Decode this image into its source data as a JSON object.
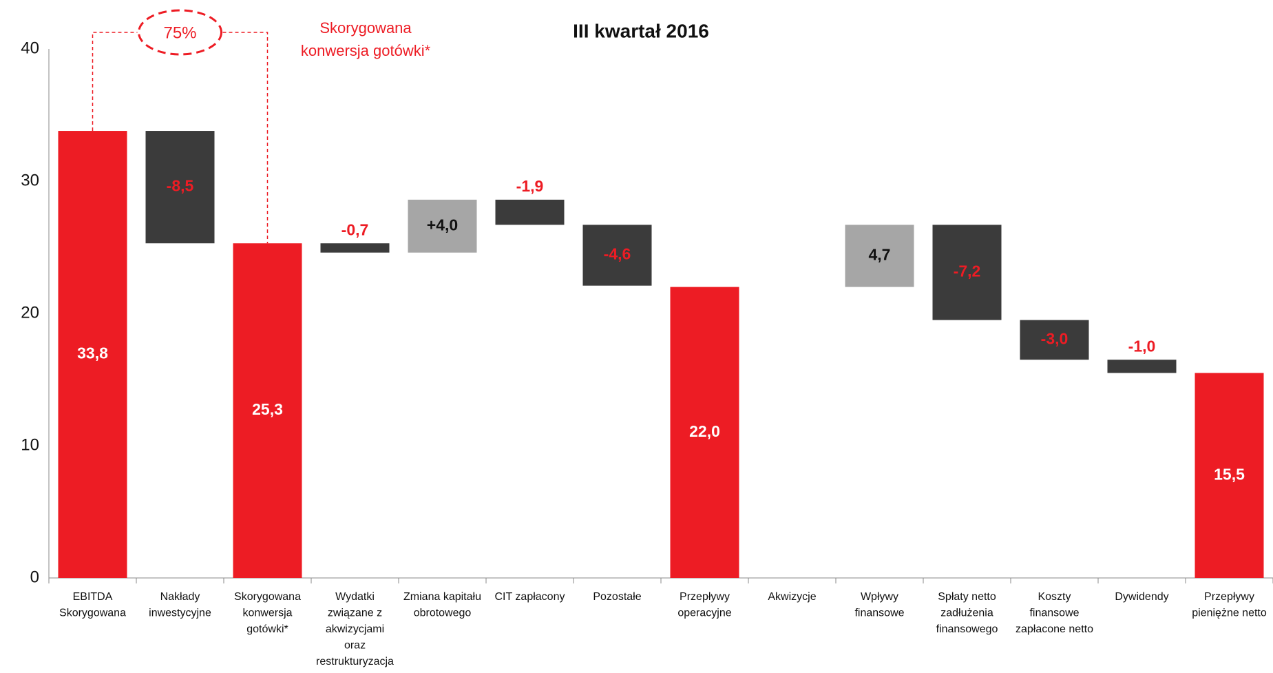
{
  "chart_data": {
    "type": "waterfall",
    "title": "III kwartał 2016",
    "categories": [
      [
        "EBITDA",
        "Skorygowana"
      ],
      [
        "Nakłady",
        "inwestycyjne"
      ],
      [
        "Skorygowana",
        "konwersja",
        "gotówki*"
      ],
      [
        "Wydatki",
        "związane z",
        "akwizycjami",
        "oraz",
        "restrukturyzacja"
      ],
      [
        "Zmiana kapitału",
        "obrotowego"
      ],
      [
        "CIT zapłacony"
      ],
      [
        "Pozostałe"
      ],
      [
        "Przepływy",
        "operacyjne"
      ],
      [
        "Akwizycje"
      ],
      [
        "Wpływy",
        "finansowe"
      ],
      [
        "Spłaty netto",
        "zadłużenia",
        "finansowego"
      ],
      [
        "Koszty",
        "finansowe",
        "zapłacone netto"
      ],
      [
        "Dywidendy"
      ],
      [
        "Przepływy",
        "pieniężne netto"
      ]
    ],
    "values": [
      33.8,
      -8.5,
      25.3,
      -0.7,
      4.0,
      -1.9,
      -4.6,
      22.0,
      null,
      4.7,
      -7.2,
      -3.0,
      -1.0,
      15.5
    ],
    "value_labels": [
      "33,8",
      "-8,5",
      "25,3",
      "-0,7",
      "+4,0",
      "-1,9",
      "-4,6",
      "22,0",
      null,
      "4,7",
      "-7,2",
      "-3,0",
      "-1,0",
      "15,5"
    ],
    "measure": [
      "total",
      "relative",
      "total",
      "relative",
      "relative",
      "relative",
      "relative",
      "total",
      "relative",
      "relative",
      "relative",
      "relative",
      "relative",
      "total"
    ],
    "colors": {
      "total": "#ed1c24",
      "decrease": "#3b3b3b",
      "increase": "#a6a6a6"
    },
    "label_colors": {
      "total": "#ffffff",
      "decrease": "#ed1c24",
      "increase": "#111111"
    },
    "ylim": [
      0,
      40
    ],
    "yticks": [
      0,
      10,
      20,
      30,
      40
    ],
    "grid": false,
    "annotations": {
      "ratio": "75%",
      "note": [
        "Skorygowana",
        "konwersja gotówki*"
      ]
    }
  }
}
